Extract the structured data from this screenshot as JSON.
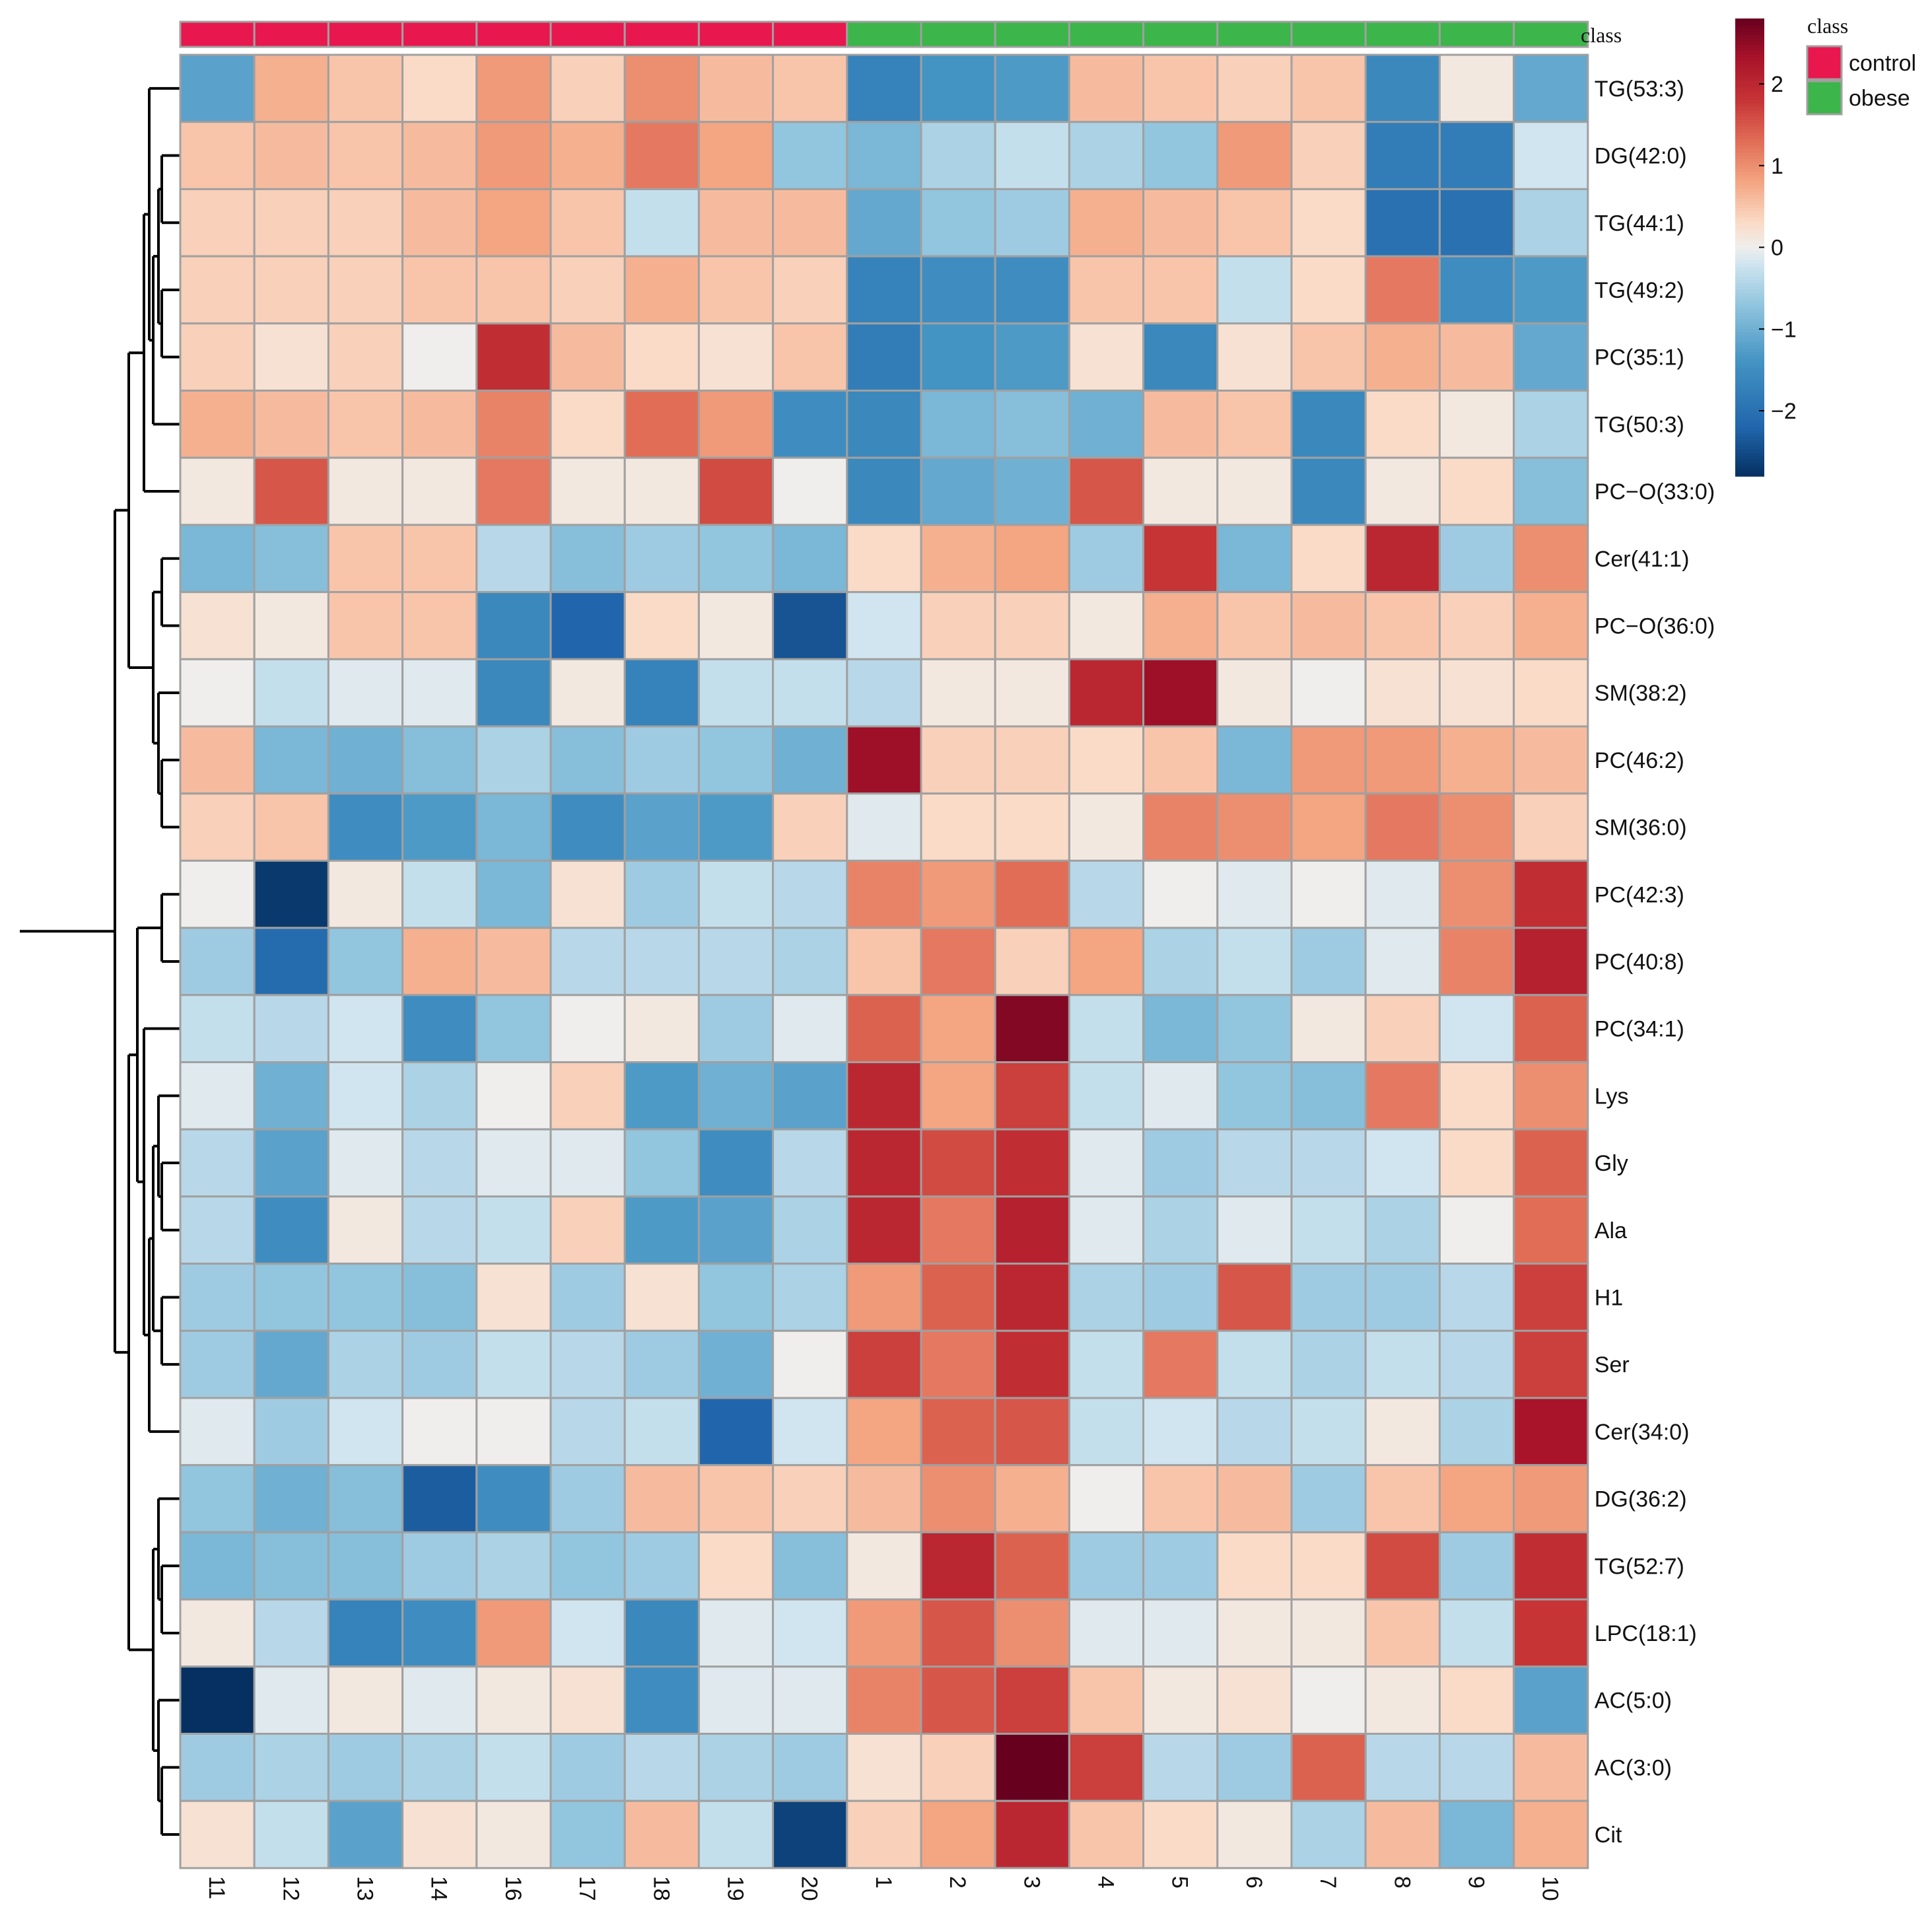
{
  "chart_data": {
    "type": "heatmap",
    "title": "",
    "rows": [
      "TG(53:3)",
      "DG(42:0)",
      "TG(44:1)",
      "TG(49:2)",
      "PC(35:1)",
      "TG(50:3)",
      "PC−O(33:0)",
      "Cer(41:1)",
      "PC−O(36:0)",
      "SM(38:2)",
      "PC(46:2)",
      "SM(36:0)",
      "PC(42:3)",
      "PC(40:8)",
      "PC(34:1)",
      "Lys",
      "Gly",
      "Ala",
      "H1",
      "Ser",
      "Cer(34:0)",
      "DG(36:2)",
      "TG(52:7)",
      "LPC(18:1)",
      "AC(5:0)",
      "AC(3:0)",
      "Cit"
    ],
    "columns": [
      "11",
      "12",
      "13",
      "14",
      "16",
      "17",
      "18",
      "19",
      "20",
      "1",
      "2",
      "3",
      "4",
      "5",
      "6",
      "7",
      "8",
      "9",
      "10"
    ],
    "column_class": [
      "control",
      "control",
      "control",
      "control",
      "control",
      "control",
      "control",
      "control",
      "control",
      "obese",
      "obese",
      "obese",
      "obese",
      "obese",
      "obese",
      "obese",
      "obese",
      "obese",
      "obese"
    ],
    "values": [
      [
        -1.2,
        0.7,
        0.5,
        0.3,
        0.9,
        0.4,
        1.0,
        0.6,
        0.5,
        -1.7,
        -1.4,
        -1.3,
        0.6,
        0.5,
        0.4,
        0.5,
        -1.6,
        0.1,
        -1.1
      ],
      [
        0.5,
        0.6,
        0.5,
        0.6,
        0.9,
        0.7,
        1.2,
        0.8,
        -0.7,
        -0.9,
        -0.5,
        -0.3,
        -0.5,
        -0.7,
        0.9,
        0.4,
        -1.8,
        -1.8,
        -0.2
      ],
      [
        0.4,
        0.4,
        0.4,
        0.6,
        0.8,
        0.5,
        -0.3,
        0.6,
        0.6,
        -1.1,
        -0.7,
        -0.6,
        0.7,
        0.6,
        0.5,
        0.3,
        -2.0,
        -2.0,
        -0.5
      ],
      [
        0.4,
        0.4,
        0.4,
        0.5,
        0.5,
        0.4,
        0.7,
        0.5,
        0.4,
        -1.7,
        -1.5,
        -1.5,
        0.5,
        0.5,
        -0.3,
        0.3,
        1.2,
        -1.5,
        -1.3
      ],
      [
        0.4,
        0.2,
        0.4,
        0.0,
        1.9,
        0.6,
        0.3,
        0.2,
        0.5,
        -1.8,
        -1.4,
        -1.3,
        0.2,
        -1.6,
        0.2,
        0.5,
        0.7,
        0.6,
        -1.1
      ],
      [
        0.7,
        0.6,
        0.5,
        0.6,
        1.1,
        0.3,
        1.3,
        0.9,
        -1.5,
        -1.6,
        -0.9,
        -0.8,
        -1.0,
        0.6,
        0.5,
        -1.6,
        0.3,
        0.1,
        -0.5
      ],
      [
        0.1,
        1.5,
        0.1,
        0.1,
        1.2,
        0.1,
        0.1,
        1.6,
        0.0,
        -1.6,
        -1.1,
        -1.0,
        1.5,
        0.1,
        0.1,
        -1.6,
        0.1,
        0.3,
        -0.8
      ],
      [
        -0.9,
        -0.8,
        0.5,
        0.5,
        -0.4,
        -0.8,
        -0.6,
        -0.7,
        -0.9,
        0.3,
        0.7,
        0.8,
        -0.6,
        1.8,
        -0.9,
        0.3,
        2.0,
        -0.6,
        1.0
      ],
      [
        0.2,
        0.1,
        0.5,
        0.5,
        -1.6,
        -2.2,
        0.3,
        0.1,
        -2.4,
        -0.2,
        0.4,
        0.4,
        0.1,
        0.7,
        0.5,
        0.6,
        0.5,
        0.4,
        0.7
      ],
      [
        0.0,
        -0.3,
        -0.1,
        -0.1,
        -1.6,
        0.1,
        -1.7,
        -0.3,
        -0.3,
        -0.4,
        0.1,
        0.1,
        2.0,
        2.4,
        0.1,
        0.0,
        0.2,
        0.2,
        0.3
      ],
      [
        0.6,
        -0.9,
        -1.0,
        -0.8,
        -0.5,
        -0.8,
        -0.6,
        -0.7,
        -1.0,
        2.4,
        0.4,
        0.4,
        0.3,
        0.5,
        -0.9,
        0.9,
        0.9,
        0.7,
        0.6
      ],
      [
        0.4,
        0.5,
        -1.5,
        -1.3,
        -0.9,
        -1.5,
        -1.2,
        -1.3,
        0.4,
        -0.1,
        0.3,
        0.3,
        0.1,
        1.1,
        1.0,
        0.8,
        1.2,
        1.0,
        0.4
      ],
      [
        0.0,
        -2.7,
        0.1,
        -0.3,
        -0.9,
        0.2,
        -0.6,
        -0.3,
        -0.4,
        1.1,
        0.9,
        1.3,
        -0.4,
        0.0,
        -0.1,
        0.0,
        -0.1,
        1.0,
        1.9
      ],
      [
        -0.6,
        -2.1,
        -0.7,
        0.7,
        0.6,
        -0.4,
        -0.4,
        -0.4,
        -0.5,
        0.5,
        1.2,
        0.4,
        0.8,
        -0.5,
        -0.3,
        -0.6,
        -0.1,
        1.1,
        2.1
      ],
      [
        -0.3,
        -0.4,
        -0.2,
        -1.5,
        -0.7,
        0.0,
        0.1,
        -0.6,
        -0.1,
        1.4,
        0.8,
        2.6,
        -0.3,
        -0.9,
        -0.7,
        0.1,
        0.4,
        -0.2,
        1.4
      ],
      [
        -0.1,
        -1.0,
        -0.2,
        -0.5,
        0.0,
        0.4,
        -1.3,
        -1.0,
        -1.2,
        2.0,
        0.8,
        1.7,
        -0.3,
        -0.1,
        -0.7,
        -0.8,
        1.2,
        0.3,
        1.0
      ],
      [
        -0.4,
        -1.2,
        -0.1,
        -0.4,
        -0.1,
        -0.1,
        -0.7,
        -1.5,
        -0.4,
        2.0,
        1.6,
        1.9,
        -0.1,
        -0.6,
        -0.4,
        -0.4,
        -0.2,
        0.3,
        1.4
      ],
      [
        -0.4,
        -1.5,
        0.1,
        -0.4,
        -0.3,
        0.4,
        -1.3,
        -1.2,
        -0.5,
        2.0,
        1.2,
        2.1,
        -0.1,
        -0.5,
        -0.1,
        -0.3,
        -0.5,
        0.0,
        1.3
      ],
      [
        -0.6,
        -0.7,
        -0.7,
        -0.8,
        0.2,
        -0.6,
        0.2,
        -0.7,
        -0.5,
        0.9,
        1.4,
        2.0,
        -0.5,
        -0.6,
        1.5,
        -0.6,
        -0.6,
        -0.4,
        1.7
      ],
      [
        -0.6,
        -1.1,
        -0.5,
        -0.6,
        -0.3,
        -0.4,
        -0.6,
        -1.0,
        0.0,
        1.7,
        1.2,
        1.9,
        -0.3,
        1.2,
        -0.3,
        -0.5,
        -0.3,
        -0.4,
        1.7
      ],
      [
        -0.1,
        -0.6,
        -0.2,
        0.0,
        0.0,
        -0.4,
        -0.3,
        -2.2,
        -0.2,
        0.8,
        1.4,
        1.5,
        -0.3,
        -0.2,
        -0.4,
        -0.3,
        0.1,
        -0.5,
        2.3
      ],
      [
        -0.7,
        -1.0,
        -0.8,
        -2.3,
        -1.5,
        -0.6,
        0.6,
        0.5,
        0.4,
        0.6,
        1.0,
        0.7,
        0.0,
        0.5,
        0.6,
        -0.6,
        0.5,
        0.8,
        0.9
      ],
      [
        -0.9,
        -0.8,
        -0.8,
        -0.6,
        -0.5,
        -0.7,
        -0.6,
        0.3,
        -0.8,
        0.1,
        2.0,
        1.4,
        -0.6,
        -0.6,
        0.3,
        0.3,
        1.6,
        -0.6,
        1.9
      ],
      [
        0.1,
        -0.4,
        -1.7,
        -1.5,
        0.9,
        -0.2,
        -1.6,
        -0.1,
        -0.2,
        0.9,
        1.5,
        1.0,
        -0.1,
        -0.1,
        0.1,
        0.1,
        0.5,
        -0.3,
        1.8
      ],
      [
        -2.8,
        -0.1,
        0.1,
        -0.1,
        0.1,
        0.2,
        -1.5,
        -0.1,
        -0.1,
        1.1,
        1.5,
        1.7,
        0.5,
        0.1,
        0.2,
        0.0,
        0.1,
        0.3,
        -1.2
      ],
      [
        -0.6,
        -0.5,
        -0.6,
        -0.5,
        -0.3,
        -0.6,
        -0.4,
        -0.5,
        -0.6,
        0.2,
        0.4,
        2.8,
        1.7,
        -0.4,
        -0.6,
        1.4,
        -0.4,
        -0.4,
        0.6
      ],
      [
        0.2,
        -0.3,
        -1.2,
        0.2,
        0.1,
        -0.7,
        0.6,
        -0.3,
        -2.6,
        0.4,
        0.8,
        2.0,
        0.5,
        0.3,
        0.1,
        -0.5,
        0.6,
        -0.9,
        0.7
      ]
    ],
    "value_range": [
      -2.8,
      2.8
    ],
    "colorbar_ticks": [
      "2",
      "1",
      "0",
      "−1",
      "−2"
    ],
    "colorbar_tick_values": [
      2,
      1,
      0,
      -1,
      -2
    ],
    "annotation_title": "class",
    "legend": [
      {
        "label": "control",
        "color": "#E8174E"
      },
      {
        "label": "obese",
        "color": "#3CB54A"
      }
    ],
    "colors": {
      "cell_border": "#A0A0A0",
      "low": "#053061",
      "mid": "#F7F7F7",
      "high": "#67001F"
    }
  }
}
